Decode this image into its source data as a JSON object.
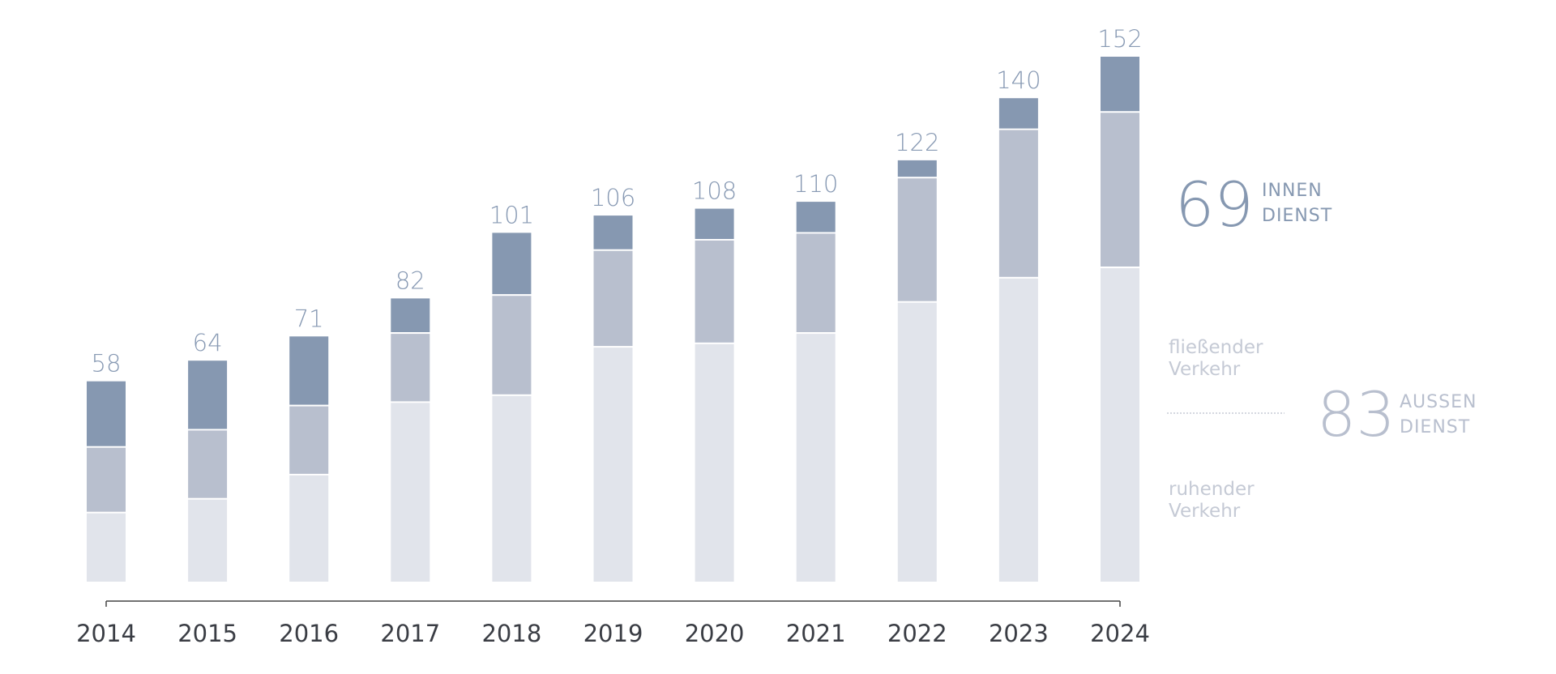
{
  "chart_data": {
    "type": "bar",
    "stacked": true,
    "categories": [
      "2014",
      "2015",
      "2016",
      "2017",
      "2018",
      "2019",
      "2020",
      "2021",
      "2022",
      "2023",
      "2024"
    ],
    "series": [
      {
        "values": [
          20,
          24,
          31,
          52,
          54,
          68,
          69,
          72,
          81,
          88,
          91
        ],
        "color": "#e1e4eb"
      },
      {
        "values": [
          19,
          20,
          20,
          20,
          29,
          28,
          30,
          29,
          36,
          43,
          45
        ],
        "color": "#b8bfce"
      },
      {
        "values": [
          19,
          20,
          20,
          10,
          18,
          10,
          9,
          9,
          5,
          9,
          16
        ],
        "color": "#8698b1"
      }
    ],
    "totals": [
      58,
      64,
      71,
      82,
      101,
      106,
      108,
      110,
      122,
      140,
      152
    ],
    "ylim": [
      0,
      152
    ],
    "grid": false
  },
  "summary": {
    "innen": {
      "value": "69",
      "line1": "INNEN",
      "line2": "DIENST"
    },
    "aussen": {
      "value": "83",
      "line1": "AUSSEN",
      "line2": "DIENST"
    },
    "fliessend": {
      "line1": "fließender",
      "line2": "Verkehr"
    },
    "ruhend": {
      "line1": "ruhender",
      "line2": "Verkehr"
    }
  },
  "colors": {
    "innen": "#8698b1",
    "fliessend": "#b8bfce",
    "ruhend": "#e1e4eb",
    "total_label": "#8799b3",
    "axis": "#444444",
    "year_label": "#3a3d44",
    "aussen_text": "#b8bfce",
    "segment_text": "#c5cad5"
  }
}
